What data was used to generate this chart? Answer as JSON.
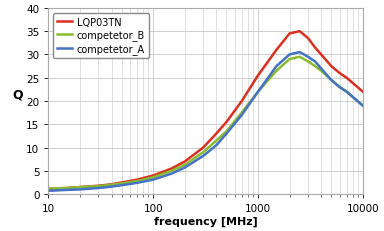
{
  "title": "",
  "xlabel": "frequency [MHz]",
  "ylabel": "Q",
  "xlim": [
    10,
    10000
  ],
  "ylim": [
    0,
    40
  ],
  "yticks": [
    0,
    5,
    10,
    15,
    20,
    25,
    30,
    35,
    40
  ],
  "legend": [
    "LQP03TN",
    "competetor_B",
    "competetor_A"
  ],
  "colors": [
    "#d83020",
    "#8aba30",
    "#4472c4"
  ],
  "lqp03tn": {
    "freq": [
      10,
      15,
      20,
      30,
      40,
      50,
      70,
      100,
      150,
      200,
      300,
      400,
      500,
      700,
      1000,
      1500,
      2000,
      2500,
      3000,
      3500,
      4000,
      5000,
      6000,
      7000,
      10000
    ],
    "Q": [
      1.1,
      1.3,
      1.5,
      1.8,
      2.1,
      2.5,
      3.1,
      4.0,
      5.5,
      7.0,
      10.0,
      13.0,
      15.5,
      20.0,
      25.5,
      31.0,
      34.5,
      35.0,
      33.5,
      31.5,
      30.0,
      27.5,
      26.0,
      25.0,
      22.0
    ]
  },
  "competetor_b": {
    "freq": [
      10,
      15,
      20,
      30,
      40,
      50,
      70,
      100,
      150,
      200,
      300,
      400,
      500,
      700,
      1000,
      1500,
      2000,
      2500,
      3000,
      3500,
      4000,
      5000,
      6000,
      7000,
      10000
    ],
    "Q": [
      1.2,
      1.3,
      1.5,
      1.7,
      2.0,
      2.3,
      2.8,
      3.6,
      5.0,
      6.3,
      9.0,
      11.5,
      13.5,
      17.5,
      22.0,
      26.5,
      29.0,
      29.5,
      28.5,
      27.5,
      26.5,
      24.5,
      23.0,
      22.0,
      19.0
    ]
  },
  "competetor_a": {
    "freq": [
      10,
      15,
      20,
      30,
      40,
      50,
      70,
      100,
      150,
      200,
      300,
      400,
      500,
      700,
      1000,
      1500,
      2000,
      2500,
      3000,
      3500,
      4000,
      5000,
      6000,
      7000,
      10000
    ],
    "Q": [
      0.7,
      0.9,
      1.0,
      1.3,
      1.6,
      1.9,
      2.4,
      3.1,
      4.4,
      5.7,
      8.2,
      10.5,
      13.0,
      17.0,
      22.0,
      27.5,
      30.0,
      30.5,
      29.5,
      28.5,
      27.0,
      24.5,
      23.0,
      22.0,
      19.0
    ]
  },
  "fig_bg": "#ffffff",
  "plot_bg": "#ffffff",
  "grid_color": "#c8c8c8",
  "linewidth": 1.8,
  "figsize": [
    3.84,
    2.32
  ],
  "dpi": 100
}
